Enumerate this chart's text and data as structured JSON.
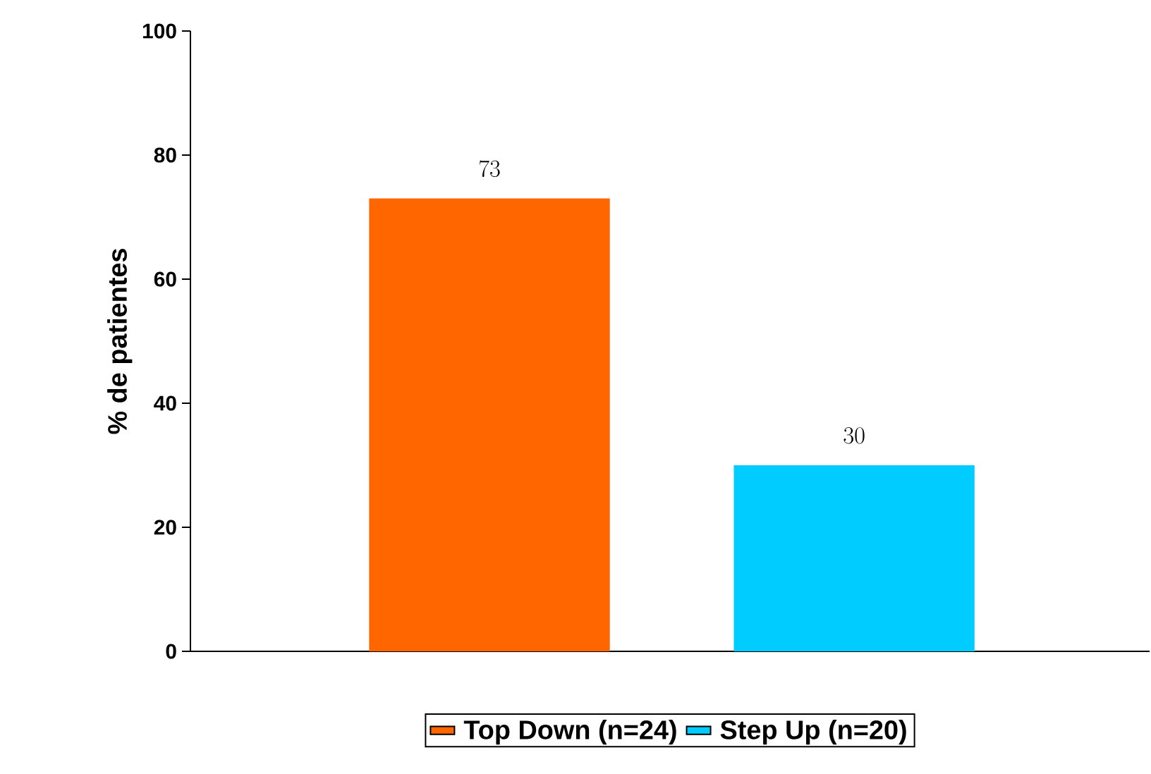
{
  "chart_data": {
    "type": "bar",
    "ylabel": "% de patientes",
    "categories": [
      null,
      null
    ],
    "series": [
      {
        "name": "Top Down (n=24)",
        "color": "#ff6600",
        "values": [
          73,
          null
        ]
      },
      {
        "name": "Step Up (n=20)",
        "color": "#00ccff",
        "values": [
          null,
          30
        ]
      }
    ],
    "ylim": [
      0,
      100
    ],
    "yticks": [
      0,
      20,
      40,
      60,
      80,
      100
    ],
    "data_labels": true,
    "legend": "bottom",
    "grid": false
  }
}
